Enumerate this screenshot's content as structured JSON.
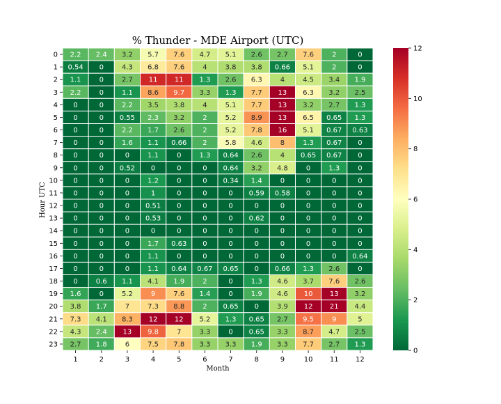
{
  "chart_data": {
    "type": "heatmap",
    "title": "% Thunder - MDE Airport (UTC)",
    "xlabel": "Month",
    "ylabel": "Hour UTC",
    "x": [
      "1",
      "2",
      "3",
      "4",
      "5",
      "6",
      "7",
      "8",
      "9",
      "10",
      "11",
      "12"
    ],
    "y": [
      "0",
      "1",
      "2",
      "3",
      "4",
      "5",
      "6",
      "7",
      "8",
      "9",
      "10",
      "11",
      "12",
      "13",
      "14",
      "15",
      "16",
      "17",
      "18",
      "19",
      "20",
      "21",
      "22",
      "23"
    ],
    "values": [
      [
        2.2,
        2.4,
        3.2,
        5.7,
        7.6,
        4.7,
        5.1,
        2.6,
        2.7,
        7.6,
        2,
        0
      ],
      [
        0.54,
        0,
        4.3,
        6.8,
        7.6,
        4,
        3.8,
        3.8,
        0.66,
        5.1,
        2,
        0
      ],
      [
        1.1,
        0,
        2.7,
        11,
        11,
        1.3,
        2.6,
        6.3,
        4,
        4.5,
        3.4,
        1.9
      ],
      [
        2.2,
        0,
        1.1,
        8.6,
        9.7,
        3.3,
        1.3,
        7.7,
        13,
        6.3,
        3.2,
        2.5
      ],
      [
        0,
        0,
        2.2,
        3.5,
        3.8,
        4,
        5.1,
        7.7,
        13,
        3.2,
        2.7,
        1.3
      ],
      [
        0,
        0,
        0.55,
        2.3,
        3.2,
        2,
        5.2,
        8.9,
        13,
        6.5,
        0.65,
        1.3
      ],
      [
        0,
        0,
        2.2,
        1.7,
        2.6,
        2,
        5.2,
        7.8,
        16,
        5.1,
        0.67,
        0.63
      ],
      [
        0,
        0,
        1.6,
        1.1,
        0.66,
        2,
        5.8,
        4.6,
        8,
        1.3,
        0.67,
        0
      ],
      [
        0,
        0,
        0,
        1.1,
        0,
        1.3,
        0.64,
        2.6,
        4,
        0.65,
        0.67,
        0
      ],
      [
        0,
        0,
        0.52,
        0,
        0,
        0,
        0.64,
        3.2,
        4.8,
        0,
        1.3,
        0
      ],
      [
        0,
        0,
        0,
        1.2,
        0,
        0,
        0.34,
        1.4,
        0,
        0,
        0,
        0
      ],
      [
        0,
        0,
        0,
        1,
        0,
        0,
        0,
        0.59,
        0.58,
        0,
        0,
        0
      ],
      [
        0,
        0,
        0,
        0.51,
        0,
        0,
        0,
        0,
        0,
        0,
        0,
        0
      ],
      [
        0,
        0,
        0,
        0.53,
        0,
        0,
        0,
        0.62,
        0,
        0,
        0,
        0
      ],
      [
        0,
        0,
        0,
        0,
        0,
        0,
        0,
        0,
        0,
        0,
        0,
        0
      ],
      [
        0,
        0,
        0,
        1.7,
        0.63,
        0,
        0,
        0,
        0,
        0,
        0,
        0
      ],
      [
        0,
        0,
        0,
        1.1,
        0,
        0,
        0,
        0,
        0,
        0,
        0,
        0.64
      ],
      [
        0,
        0,
        0,
        1.1,
        0.64,
        0.67,
        0.65,
        0,
        0.66,
        1.3,
        2.6,
        0
      ],
      [
        0,
        0.6,
        1.1,
        4.1,
        1.9,
        2,
        0,
        1.3,
        4.6,
        3.7,
        7.6,
        2.6
      ],
      [
        1.6,
        0,
        5.2,
        9,
        7.6,
        1.4,
        0,
        1.9,
        4.6,
        10,
        13,
        3.2
      ],
      [
        3.8,
        1.7,
        7,
        7.3,
        8.8,
        2,
        0.65,
        0,
        3.9,
        12,
        21,
        4.4
      ],
      [
        7.3,
        4.1,
        8.3,
        12,
        12,
        5.2,
        1.3,
        0.65,
        2.7,
        9.5,
        9,
        5
      ],
      [
        4.3,
        2.4,
        13,
        9.8,
        7,
        3.3,
        0,
        0.65,
        3.3,
        8.7,
        4.7,
        2.5
      ],
      [
        2.7,
        1.8,
        6,
        7.5,
        7.8,
        3.3,
        3.3,
        1.9,
        3.3,
        7.7,
        2.7,
        1.3
      ]
    ],
    "colormap": "RdYlGn_r",
    "vmin": 0,
    "vmax": 12,
    "colorbar_ticks": [
      0,
      2,
      4,
      6,
      8,
      10,
      12
    ],
    "cell_annotations": true,
    "grid": false,
    "legend": "colorbar-right"
  }
}
